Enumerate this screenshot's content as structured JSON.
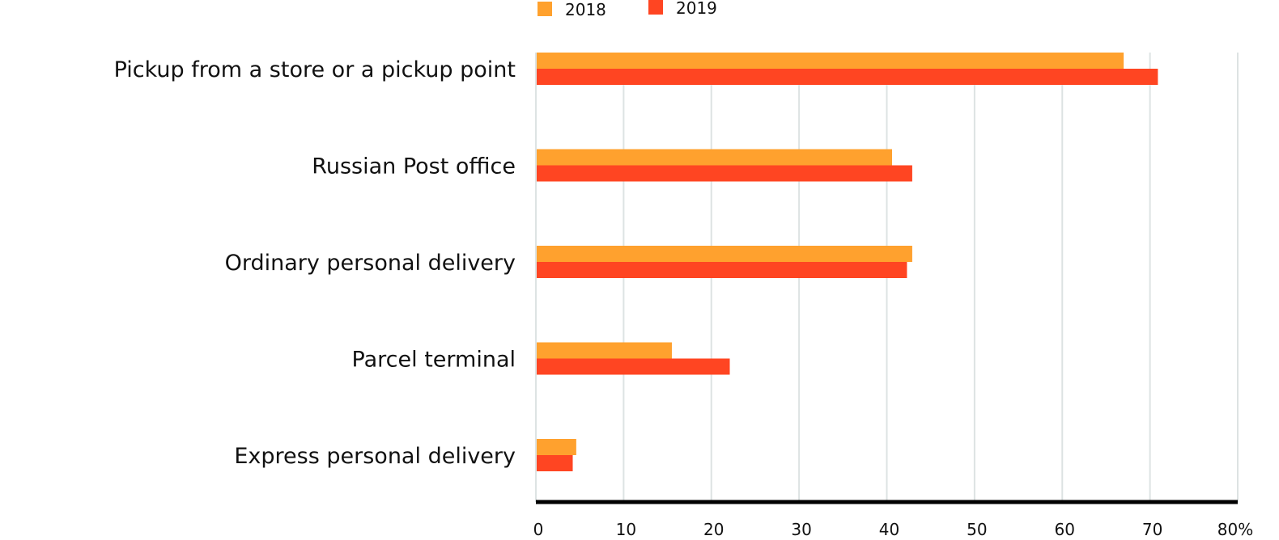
{
  "chart_data": {
    "type": "bar",
    "orientation": "horizontal",
    "categories": [
      "Pickup from a store or a pickup point",
      "Russian Post office",
      "Ordinary personal delivery",
      "Parcel terminal",
      "Express personal delivery"
    ],
    "series": [
      {
        "name": "2018",
        "color": "#ffa12e",
        "values": [
          67,
          40.6,
          42.9,
          15.5,
          4.6
        ]
      },
      {
        "name": "2019",
        "color": "#ff4522",
        "values": [
          70.9,
          42.9,
          42.3,
          22.1,
          4.2
        ]
      }
    ],
    "x_ticks": [
      "0",
      "10",
      "20",
      "30",
      "40",
      "50",
      "60",
      "70",
      "80%"
    ],
    "xlim": [
      0,
      80
    ],
    "grid": true,
    "legend_position": "top",
    "title": "",
    "xlabel": "",
    "ylabel": ""
  }
}
